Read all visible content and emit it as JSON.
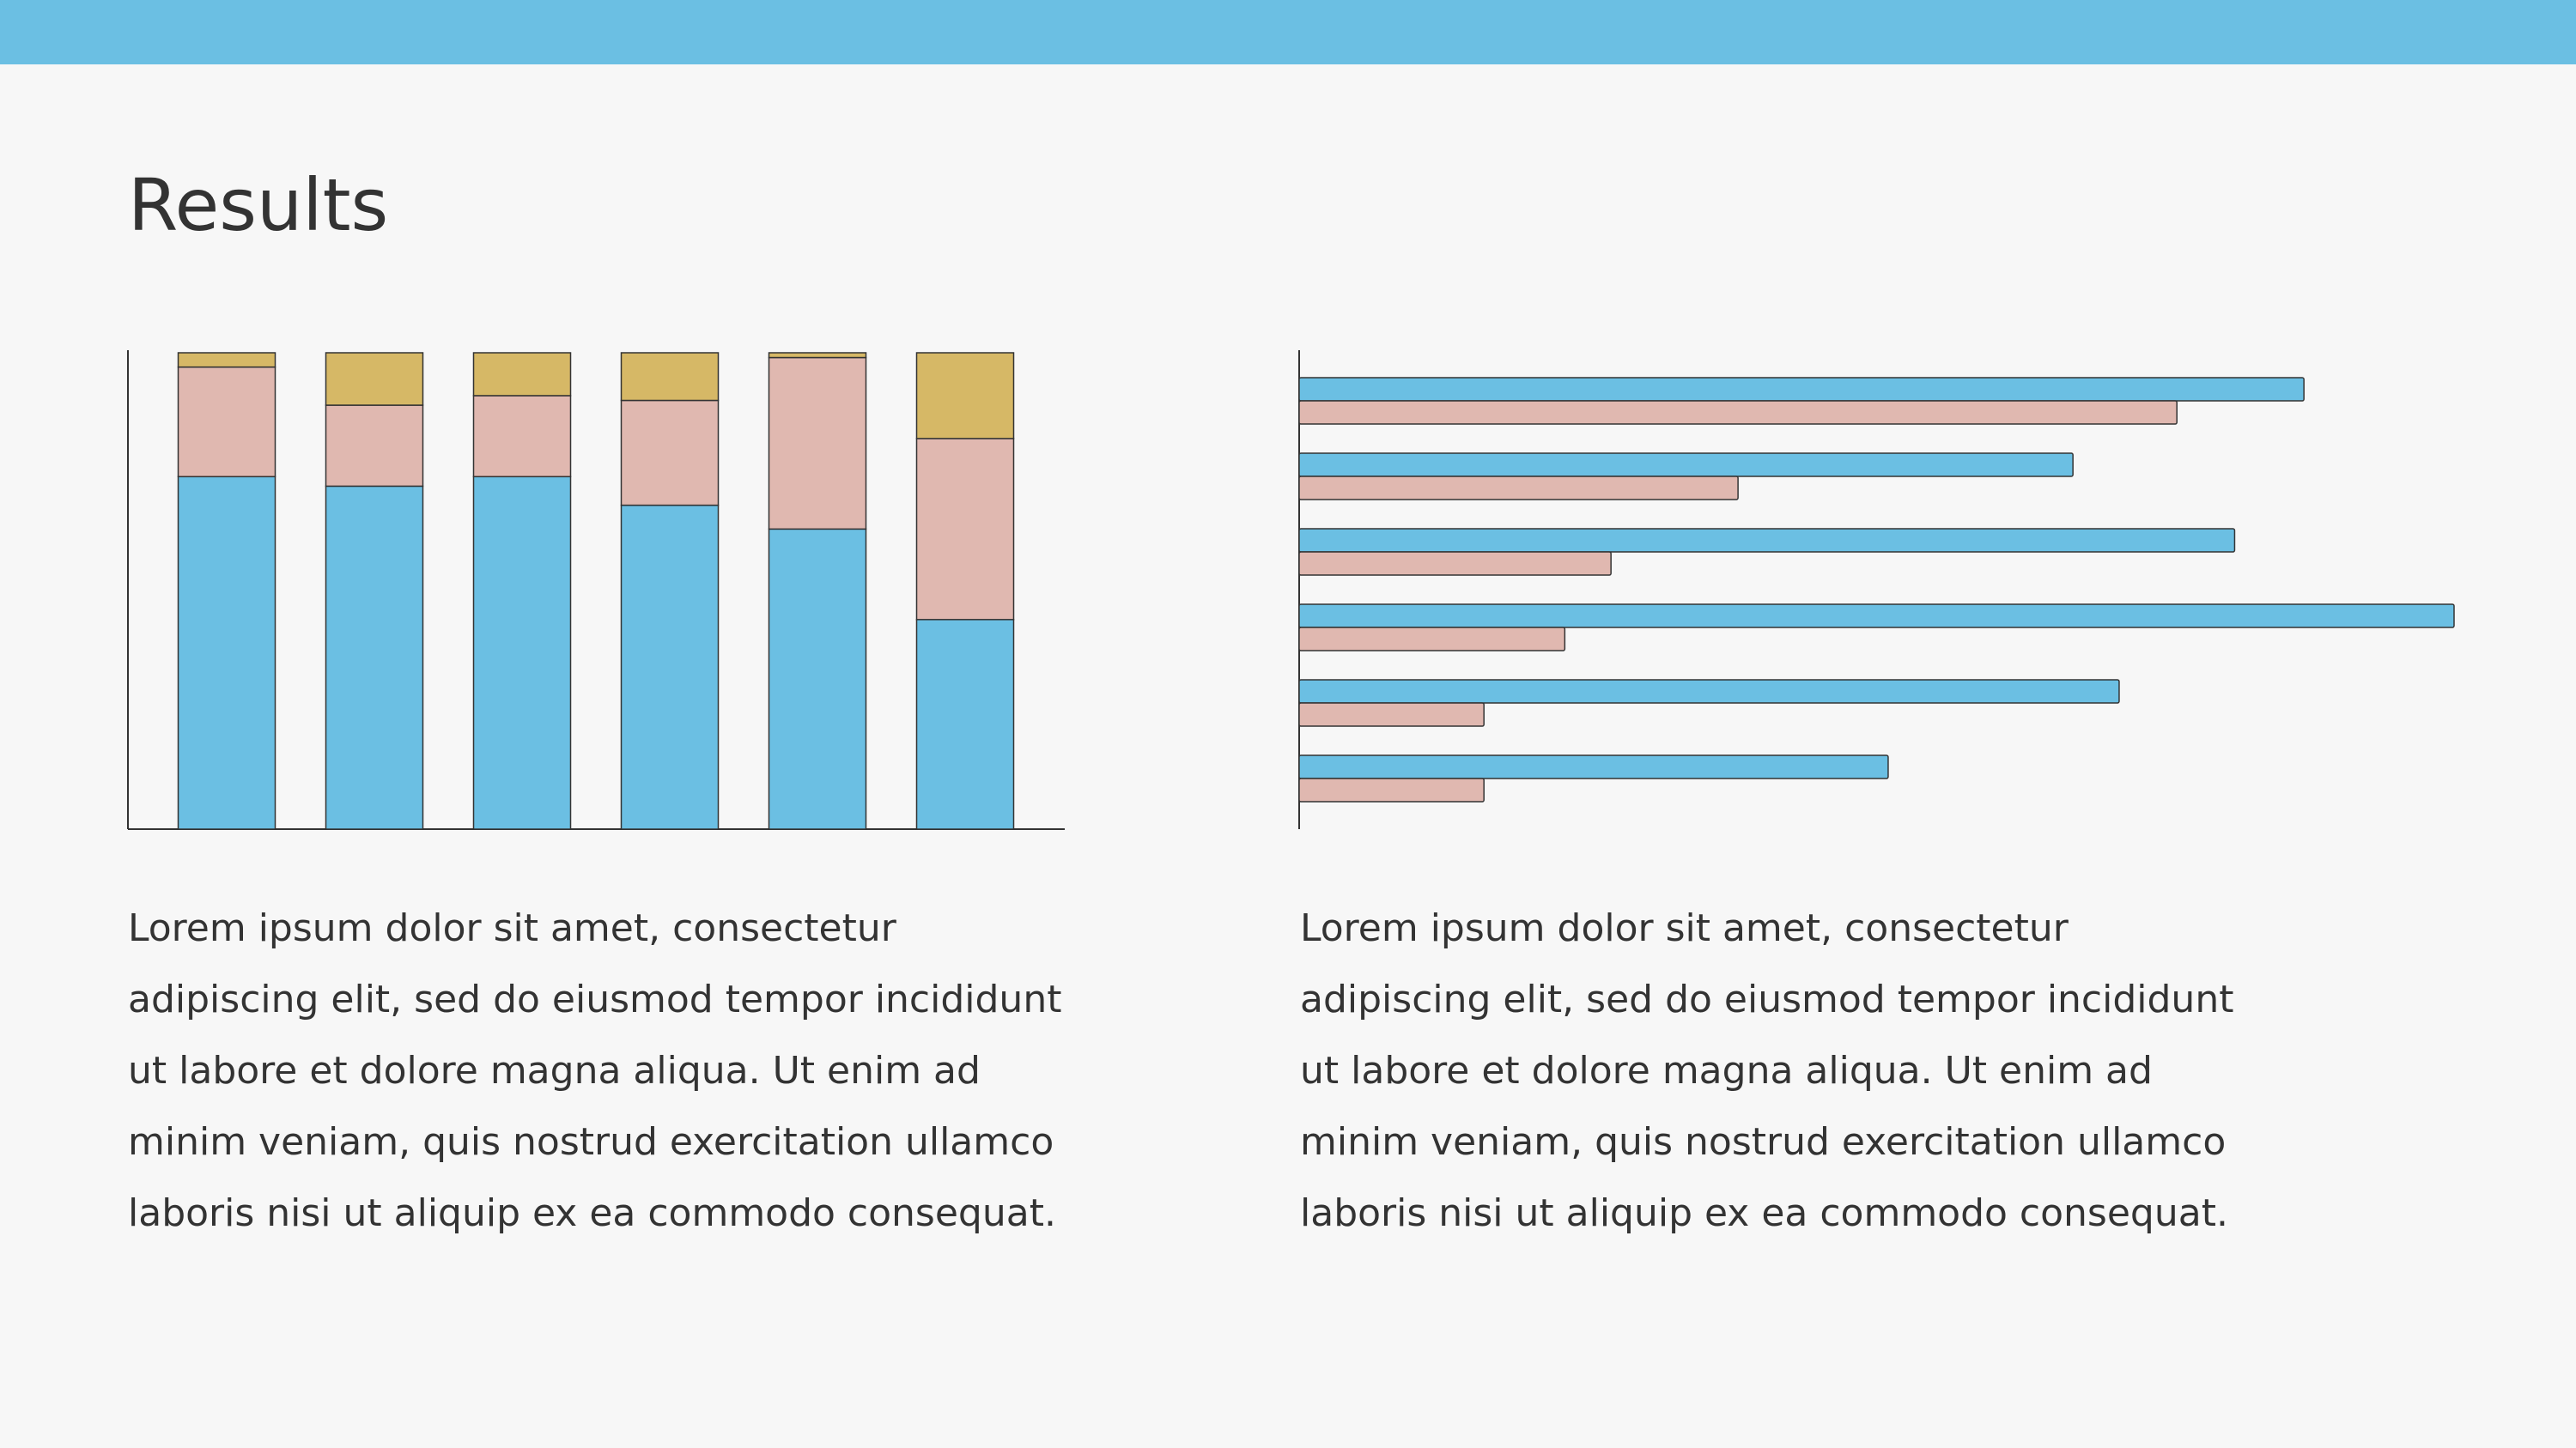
{
  "title": "Results",
  "chart_data": [
    {
      "type": "bar",
      "stacked": true,
      "horizontal": false,
      "ylim": [
        0,
        100
      ],
      "series": [
        {
          "color": "#6bbfe3",
          "values": [
            74,
            72,
            74,
            68,
            63,
            44
          ]
        },
        {
          "color": "#e0b8b0",
          "values": [
            23,
            17,
            17,
            22,
            36,
            38
          ]
        },
        {
          "color": "#d6b866",
          "values": [
            3,
            11,
            9,
            10,
            1,
            18
          ]
        }
      ]
    },
    {
      "type": "bar",
      "stacked": false,
      "horizontal": true,
      "xlim": [
        0,
        100
      ],
      "series": [
        {
          "color": "#6bbfe3",
          "values": [
            87,
            67,
            81,
            100,
            71,
            51
          ]
        },
        {
          "color": "#e0b8b0",
          "values": [
            76,
            38,
            27,
            23,
            16,
            16
          ]
        }
      ]
    }
  ],
  "paragraphs": [
    "Lorem ipsum dolor sit amet, consectetur adipiscing elit, sed do eiusmod tempor incididunt ut labore et dolore magna aliqua. Ut enim ad minim veniam, quis nostrud exercitation ullamco laboris nisi ut aliquip ex ea commodo consequat.",
    "Lorem ipsum dolor sit amet, consectetur adipiscing elit, sed do eiusmod tempor incididunt ut labore et dolore magna aliqua. Ut enim ad minim veniam, quis nostrud exercitation ullamco laboris nisi ut aliquip ex ea commodo consequat."
  ]
}
